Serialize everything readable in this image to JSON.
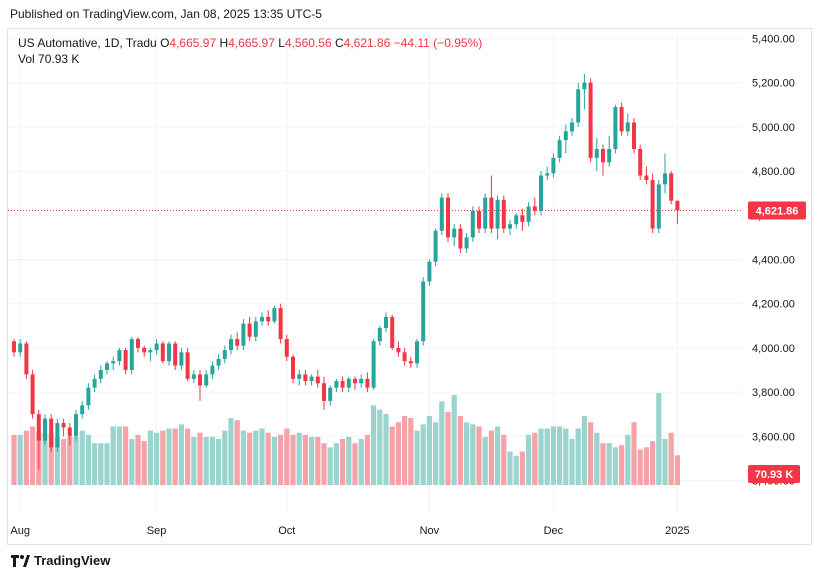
{
  "header": {
    "published": "Published on TradingView.com, Jan 08, 2025 13:35 UTC-5"
  },
  "legend": {
    "symbol": "US Automative, 1D, Tradu",
    "o_label": "O",
    "o_value": "4,665.97",
    "h_label": "H",
    "h_value": "4,665.97",
    "l_label": "L",
    "l_value": "4,560.56",
    "c_label": "C",
    "c_value": "4,621.86",
    "change": "−44.11 (−0.95%)",
    "vol_label": "Vol",
    "vol_value": "70.93 K"
  },
  "footer": {
    "brand": "TradingView",
    "logo_icon": "tradingview-logo-icon"
  },
  "colors": {
    "up": "#26a69a",
    "down": "#f23645",
    "vol_up": "#9ad4cd",
    "vol_down": "#f5a3a8",
    "grid": "#f0f3fa",
    "text": "#131722"
  },
  "chart_data": {
    "type": "candlestick",
    "y_ticks": [
      "3,400.00",
      "3,600.00",
      "3,800.00",
      "4,000.00",
      "4,200.00",
      "4,400.00",
      "4,600.00",
      "4,800.00",
      "5,000.00",
      "5,200.00",
      "5,400.00"
    ],
    "x_labels": [
      {
        "label": "Aug",
        "index": 1
      },
      {
        "label": "Sep",
        "index": 23
      },
      {
        "label": "Oct",
        "index": 44
      },
      {
        "label": "Nov",
        "index": 67
      },
      {
        "label": "Dec",
        "index": 87
      },
      {
        "label": "2025",
        "index": 107
      }
    ],
    "ylim": [
      3450,
      5480
    ],
    "last_price": 4621.86,
    "last_price_label": "4,621.86",
    "last_volume_label": "70.93 K",
    "volume_max": 220,
    "series": [
      {
        "o": 4030,
        "h": 4040,
        "l": 3960,
        "c": 3980,
        "v": 120
      },
      {
        "o": 3980,
        "h": 4040,
        "l": 3960,
        "c": 4020,
        "v": 120
      },
      {
        "o": 4020,
        "h": 4030,
        "l": 3860,
        "c": 3880,
        "v": 130
      },
      {
        "o": 3880,
        "h": 3900,
        "l": 3680,
        "c": 3700,
        "v": 140
      },
      {
        "o": 3700,
        "h": 3720,
        "l": 3450,
        "c": 3580,
        "v": 125
      },
      {
        "o": 3580,
        "h": 3700,
        "l": 3560,
        "c": 3680,
        "v": 125
      },
      {
        "o": 3680,
        "h": 3700,
        "l": 3530,
        "c": 3550,
        "v": 125
      },
      {
        "o": 3550,
        "h": 3680,
        "l": 3530,
        "c": 3660,
        "v": 115
      },
      {
        "o": 3660,
        "h": 3680,
        "l": 3600,
        "c": 3640,
        "v": 110
      },
      {
        "o": 3640,
        "h": 3660,
        "l": 3560,
        "c": 3600,
        "v": 115
      },
      {
        "o": 3600,
        "h": 3720,
        "l": 3580,
        "c": 3700,
        "v": 115
      },
      {
        "o": 3700,
        "h": 3760,
        "l": 3680,
        "c": 3740,
        "v": 130
      },
      {
        "o": 3740,
        "h": 3840,
        "l": 3720,
        "c": 3820,
        "v": 120
      },
      {
        "o": 3820,
        "h": 3880,
        "l": 3800,
        "c": 3860,
        "v": 100
      },
      {
        "o": 3860,
        "h": 3920,
        "l": 3840,
        "c": 3900,
        "v": 100
      },
      {
        "o": 3900,
        "h": 3940,
        "l": 3880,
        "c": 3930,
        "v": 100
      },
      {
        "o": 3930,
        "h": 3960,
        "l": 3900,
        "c": 3940,
        "v": 140
      },
      {
        "o": 3940,
        "h": 4000,
        "l": 3920,
        "c": 3990,
        "v": 140
      },
      {
        "o": 3990,
        "h": 4000,
        "l": 3880,
        "c": 3900,
        "v": 140
      },
      {
        "o": 3900,
        "h": 4050,
        "l": 3880,
        "c": 4040,
        "v": 110
      },
      {
        "o": 4040,
        "h": 4050,
        "l": 3980,
        "c": 4000,
        "v": 120
      },
      {
        "o": 4000,
        "h": 4010,
        "l": 3960,
        "c": 3980,
        "v": 105
      },
      {
        "o": 3980,
        "h": 4000,
        "l": 3940,
        "c": 3990,
        "v": 130
      },
      {
        "o": 3990,
        "h": 4040,
        "l": 3970,
        "c": 4020,
        "v": 125
      },
      {
        "o": 4020,
        "h": 4030,
        "l": 3930,
        "c": 3940,
        "v": 130
      },
      {
        "o": 3940,
        "h": 4030,
        "l": 3920,
        "c": 4020,
        "v": 135
      },
      {
        "o": 4020,
        "h": 4030,
        "l": 3900,
        "c": 3920,
        "v": 135
      },
      {
        "o": 3920,
        "h": 4000,
        "l": 3900,
        "c": 3980,
        "v": 145
      },
      {
        "o": 3980,
        "h": 4000,
        "l": 3850,
        "c": 3860,
        "v": 135
      },
      {
        "o": 3860,
        "h": 3900,
        "l": 3840,
        "c": 3880,
        "v": 115
      },
      {
        "o": 3880,
        "h": 3900,
        "l": 3760,
        "c": 3830,
        "v": 125
      },
      {
        "o": 3830,
        "h": 3900,
        "l": 3820,
        "c": 3880,
        "v": 115
      },
      {
        "o": 3880,
        "h": 3940,
        "l": 3860,
        "c": 3920,
        "v": 115
      },
      {
        "o": 3920,
        "h": 3970,
        "l": 3900,
        "c": 3950,
        "v": 110
      },
      {
        "o": 3950,
        "h": 4010,
        "l": 3930,
        "c": 3990,
        "v": 130
      },
      {
        "o": 3990,
        "h": 4060,
        "l": 3970,
        "c": 4040,
        "v": 160
      },
      {
        "o": 4040,
        "h": 4070,
        "l": 3990,
        "c": 4010,
        "v": 155
      },
      {
        "o": 4010,
        "h": 4130,
        "l": 3990,
        "c": 4110,
        "v": 130
      },
      {
        "o": 4110,
        "h": 4140,
        "l": 4030,
        "c": 4050,
        "v": 125
      },
      {
        "o": 4050,
        "h": 4140,
        "l": 4030,
        "c": 4120,
        "v": 130
      },
      {
        "o": 4120,
        "h": 4160,
        "l": 4100,
        "c": 4140,
        "v": 135
      },
      {
        "o": 4140,
        "h": 4170,
        "l": 4100,
        "c": 4120,
        "v": 125
      },
      {
        "o": 4120,
        "h": 4190,
        "l": 4110,
        "c": 4180,
        "v": 115
      },
      {
        "o": 4180,
        "h": 4200,
        "l": 4020,
        "c": 4040,
        "v": 120
      },
      {
        "o": 4040,
        "h": 4060,
        "l": 3940,
        "c": 3960,
        "v": 135
      },
      {
        "o": 3960,
        "h": 3970,
        "l": 3840,
        "c": 3860,
        "v": 120
      },
      {
        "o": 3860,
        "h": 3900,
        "l": 3830,
        "c": 3880,
        "v": 125
      },
      {
        "o": 3880,
        "h": 3900,
        "l": 3830,
        "c": 3850,
        "v": 120
      },
      {
        "o": 3850,
        "h": 3880,
        "l": 3830,
        "c": 3870,
        "v": 115
      },
      {
        "o": 3870,
        "h": 3900,
        "l": 3820,
        "c": 3840,
        "v": 115
      },
      {
        "o": 3840,
        "h": 3870,
        "l": 3720,
        "c": 3760,
        "v": 100
      },
      {
        "o": 3760,
        "h": 3830,
        "l": 3740,
        "c": 3820,
        "v": 90
      },
      {
        "o": 3820,
        "h": 3860,
        "l": 3800,
        "c": 3850,
        "v": 100
      },
      {
        "o": 3850,
        "h": 3870,
        "l": 3800,
        "c": 3820,
        "v": 110
      },
      {
        "o": 3820,
        "h": 3870,
        "l": 3800,
        "c": 3860,
        "v": 115
      },
      {
        "o": 3860,
        "h": 3870,
        "l": 3810,
        "c": 3840,
        "v": 100
      },
      {
        "o": 3840,
        "h": 3880,
        "l": 3820,
        "c": 3860,
        "v": 110
      },
      {
        "o": 3860,
        "h": 3890,
        "l": 3800,
        "c": 3820,
        "v": 120
      },
      {
        "o": 3820,
        "h": 4040,
        "l": 3810,
        "c": 4030,
        "v": 190
      },
      {
        "o": 4030,
        "h": 4100,
        "l": 4010,
        "c": 4090,
        "v": 180
      },
      {
        "o": 4090,
        "h": 4160,
        "l": 4070,
        "c": 4140,
        "v": 170
      },
      {
        "o": 4140,
        "h": 4150,
        "l": 3990,
        "c": 4000,
        "v": 140
      },
      {
        "o": 4000,
        "h": 4030,
        "l": 3960,
        "c": 3980,
        "v": 150
      },
      {
        "o": 3980,
        "h": 4000,
        "l": 3920,
        "c": 3940,
        "v": 165
      },
      {
        "o": 3940,
        "h": 3960,
        "l": 3910,
        "c": 3930,
        "v": 160
      },
      {
        "o": 3930,
        "h": 4040,
        "l": 3910,
        "c": 4030,
        "v": 130
      },
      {
        "o": 4030,
        "h": 4320,
        "l": 4010,
        "c": 4300,
        "v": 145
      },
      {
        "o": 4300,
        "h": 4400,
        "l": 4280,
        "c": 4390,
        "v": 165
      },
      {
        "o": 4390,
        "h": 4540,
        "l": 4370,
        "c": 4530,
        "v": 150
      },
      {
        "o": 4530,
        "h": 4700,
        "l": 4510,
        "c": 4680,
        "v": 200
      },
      {
        "o": 4680,
        "h": 4700,
        "l": 4480,
        "c": 4500,
        "v": 175
      },
      {
        "o": 4500,
        "h": 4560,
        "l": 4460,
        "c": 4540,
        "v": 215
      },
      {
        "o": 4540,
        "h": 4560,
        "l": 4430,
        "c": 4450,
        "v": 165
      },
      {
        "o": 4450,
        "h": 4520,
        "l": 4430,
        "c": 4500,
        "v": 150
      },
      {
        "o": 4500,
        "h": 4640,
        "l": 4480,
        "c": 4620,
        "v": 145
      },
      {
        "o": 4620,
        "h": 4640,
        "l": 4520,
        "c": 4540,
        "v": 140
      },
      {
        "o": 4540,
        "h": 4700,
        "l": 4520,
        "c": 4680,
        "v": 115
      },
      {
        "o": 4680,
        "h": 4780,
        "l": 4520,
        "c": 4540,
        "v": 130
      },
      {
        "o": 4540,
        "h": 4690,
        "l": 4490,
        "c": 4670,
        "v": 140
      },
      {
        "o": 4670,
        "h": 4690,
        "l": 4520,
        "c": 4540,
        "v": 120
      },
      {
        "o": 4540,
        "h": 4580,
        "l": 4510,
        "c": 4560,
        "v": 80
      },
      {
        "o": 4560,
        "h": 4610,
        "l": 4540,
        "c": 4600,
        "v": 70
      },
      {
        "o": 4600,
        "h": 4630,
        "l": 4530,
        "c": 4570,
        "v": 80
      },
      {
        "o": 4570,
        "h": 4660,
        "l": 4550,
        "c": 4640,
        "v": 120
      },
      {
        "o": 4640,
        "h": 4680,
        "l": 4600,
        "c": 4620,
        "v": 125
      },
      {
        "o": 4620,
        "h": 4800,
        "l": 4600,
        "c": 4780,
        "v": 135
      },
      {
        "o": 4780,
        "h": 4820,
        "l": 4760,
        "c": 4790,
        "v": 135
      },
      {
        "o": 4790,
        "h": 4880,
        "l": 4770,
        "c": 4860,
        "v": 140
      },
      {
        "o": 4860,
        "h": 4960,
        "l": 4840,
        "c": 4940,
        "v": 140
      },
      {
        "o": 4940,
        "h": 5010,
        "l": 4880,
        "c": 4980,
        "v": 135
      },
      {
        "o": 4980,
        "h": 5040,
        "l": 4960,
        "c": 5020,
        "v": 110
      },
      {
        "o": 5020,
        "h": 5200,
        "l": 5000,
        "c": 5170,
        "v": 135
      },
      {
        "o": 5170,
        "h": 5240,
        "l": 5080,
        "c": 5200,
        "v": 165
      },
      {
        "o": 5200,
        "h": 5220,
        "l": 4840,
        "c": 4860,
        "v": 150
      },
      {
        "o": 4860,
        "h": 4950,
        "l": 4800,
        "c": 4900,
        "v": 125
      },
      {
        "o": 4900,
        "h": 4920,
        "l": 4780,
        "c": 4840,
        "v": 100
      },
      {
        "o": 4840,
        "h": 4960,
        "l": 4820,
        "c": 4900,
        "v": 100
      },
      {
        "o": 4900,
        "h": 5100,
        "l": 4880,
        "c": 5090,
        "v": 90
      },
      {
        "o": 5090,
        "h": 5110,
        "l": 4960,
        "c": 4980,
        "v": 95
      },
      {
        "o": 4980,
        "h": 5060,
        "l": 4960,
        "c": 5020,
        "v": 120
      },
      {
        "o": 5020,
        "h": 5040,
        "l": 4880,
        "c": 4900,
        "v": 150
      },
      {
        "o": 4900,
        "h": 4920,
        "l": 4760,
        "c": 4780,
        "v": 85
      },
      {
        "o": 4780,
        "h": 4820,
        "l": 4740,
        "c": 4760,
        "v": 90
      },
      {
        "o": 4760,
        "h": 4790,
        "l": 4520,
        "c": 4540,
        "v": 105
      },
      {
        "o": 4540,
        "h": 4760,
        "l": 4520,
        "c": 4740,
        "v": 220
      },
      {
        "o": 4740,
        "h": 4880,
        "l": 4700,
        "c": 4790,
        "v": 110
      },
      {
        "o": 4790,
        "h": 4800,
        "l": 4650,
        "c": 4666,
        "v": 125
      },
      {
        "o": 4666,
        "h": 4666,
        "l": 4561,
        "c": 4622,
        "v": 71
      }
    ]
  }
}
